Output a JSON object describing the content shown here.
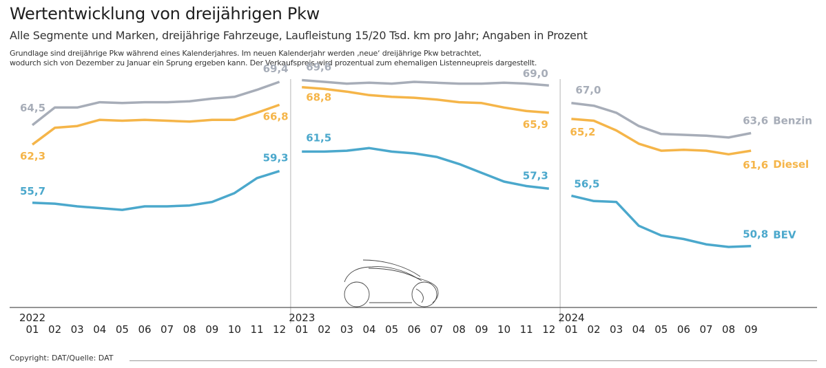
{
  "header": {
    "title": "Wertentwicklung von dreijährigen Pkw",
    "subtitle": "Alle Segmente und Marken, dreijährige Fahrzeuge, Laufleistung 15/20 Tsd. km pro Jahr; Angaben in Prozent",
    "description_line1": "Grundlage sind dreijährige Pkw während eines Kalenderjahres. Im neuen Kalenderjahr werden ‚neue‘ dreijährige Pkw betrachtet,",
    "description_line2": "wodurch sich von Dezember zu Januar ein Sprung ergeben kann. Der Verkaufspreis wird prozentual zum ehemaligen Listenneupreis dargestellt."
  },
  "footer": {
    "copyright": "Copyright: DAT/Quelle: DAT"
  },
  "colors": {
    "benzin": "#a7adb8",
    "diesel": "#f5b549",
    "bev": "#4ba8cc",
    "axis": "#555555",
    "divider": "#b5b5b5"
  },
  "chart_data": {
    "type": "line",
    "title": "Wertentwicklung von dreijährigen Pkw",
    "ylabel": "Prozent",
    "ylim": [
      44,
      74
    ],
    "years": [
      "2022",
      "2023",
      "2024"
    ],
    "month_labels": [
      "01",
      "02",
      "03",
      "04",
      "05",
      "06",
      "07",
      "08",
      "09",
      "10",
      "11",
      "12",
      "01",
      "02",
      "03",
      "04",
      "05",
      "06",
      "07",
      "08",
      "09",
      "10",
      "11",
      "12",
      "01",
      "02",
      "03",
      "04",
      "05",
      "06",
      "07",
      "08",
      "09"
    ],
    "segments": [
      [
        0,
        11
      ],
      [
        12,
        23
      ],
      [
        24,
        32
      ]
    ],
    "series": [
      {
        "name": "Benzin",
        "color": "#a7adb8",
        "values": [
          64.5,
          66.5,
          66.5,
          67.1,
          67.0,
          67.1,
          67.1,
          67.2,
          67.5,
          67.7,
          68.5,
          69.4,
          69.6,
          69.4,
          69.2,
          69.3,
          69.2,
          69.4,
          69.3,
          69.2,
          69.2,
          69.3,
          69.2,
          69.0,
          67.0,
          66.7,
          65.9,
          64.4,
          63.5,
          63.4,
          63.3,
          63.1,
          63.6
        ],
        "point_labels": [
          {
            "index": 0,
            "text": "64,5"
          },
          {
            "index": 11,
            "text": "69,4"
          },
          {
            "index": 12,
            "text": "69,6"
          },
          {
            "index": 23,
            "text": "69,0"
          },
          {
            "index": 24,
            "text": "67,0"
          },
          {
            "index": 32,
            "text": "63,6"
          }
        ]
      },
      {
        "name": "Diesel",
        "color": "#f5b549",
        "values": [
          62.3,
          64.2,
          64.4,
          65.1,
          65.0,
          65.1,
          65.0,
          64.9,
          65.1,
          65.1,
          65.9,
          66.8,
          68.8,
          68.6,
          68.3,
          67.9,
          67.7,
          67.6,
          67.4,
          67.1,
          67.0,
          66.5,
          66.1,
          65.9,
          65.2,
          65.0,
          63.9,
          62.4,
          61.6,
          61.7,
          61.6,
          61.2,
          61.6
        ],
        "point_labels": [
          {
            "index": 0,
            "text": "62,3"
          },
          {
            "index": 11,
            "text": "66,8"
          },
          {
            "index": 12,
            "text": "68,8"
          },
          {
            "index": 23,
            "text": "65,9"
          },
          {
            "index": 24,
            "text": "65,2"
          },
          {
            "index": 32,
            "text": "61,6"
          }
        ]
      },
      {
        "name": "BEV",
        "color": "#4ba8cc",
        "values": [
          55.7,
          55.6,
          55.3,
          55.1,
          54.9,
          55.3,
          55.3,
          55.4,
          55.8,
          56.8,
          58.5,
          59.3,
          61.5,
          61.5,
          61.6,
          61.9,
          61.5,
          61.3,
          60.9,
          60.1,
          59.1,
          58.1,
          57.6,
          57.3,
          56.5,
          55.9,
          55.8,
          53.1,
          52.0,
          51.6,
          51.0,
          50.7,
          50.8
        ],
        "point_labels": [
          {
            "index": 0,
            "text": "55,7"
          },
          {
            "index": 11,
            "text": "59,3"
          },
          {
            "index": 12,
            "text": "61,5"
          },
          {
            "index": 23,
            "text": "57,3"
          },
          {
            "index": 24,
            "text": "56,5"
          },
          {
            "index": 32,
            "text": "50,8"
          }
        ]
      }
    ]
  }
}
